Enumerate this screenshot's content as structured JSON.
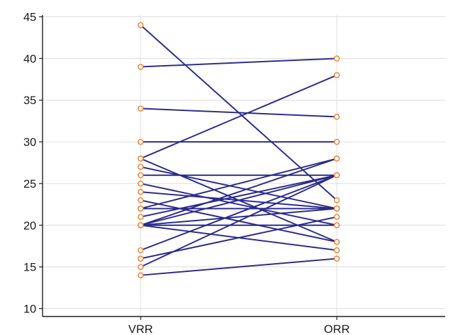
{
  "chart_data": {
    "type": "line",
    "categories": [
      "VRR",
      "ORR"
    ],
    "ylim": [
      10,
      45
    ],
    "yticks": [
      10,
      15,
      20,
      25,
      30,
      35,
      40,
      45
    ],
    "grid": true,
    "pairs": [
      [
        44,
        23
      ],
      [
        39,
        40
      ],
      [
        34,
        33
      ],
      [
        30,
        30
      ],
      [
        28,
        38
      ],
      [
        28,
        18
      ],
      [
        27,
        22
      ],
      [
        26,
        26
      ],
      [
        25,
        20
      ],
      [
        24,
        22
      ],
      [
        23,
        18
      ],
      [
        22,
        28
      ],
      [
        22,
        22
      ],
      [
        21,
        26
      ],
      [
        20,
        28
      ],
      [
        20,
        26
      ],
      [
        20,
        22
      ],
      [
        20,
        20
      ],
      [
        20,
        17
      ],
      [
        17,
        26
      ],
      [
        16,
        21
      ],
      [
        15,
        26
      ],
      [
        14,
        16
      ]
    ],
    "line_color": "#2a2a8c",
    "marker_color": "#f07b2a"
  }
}
